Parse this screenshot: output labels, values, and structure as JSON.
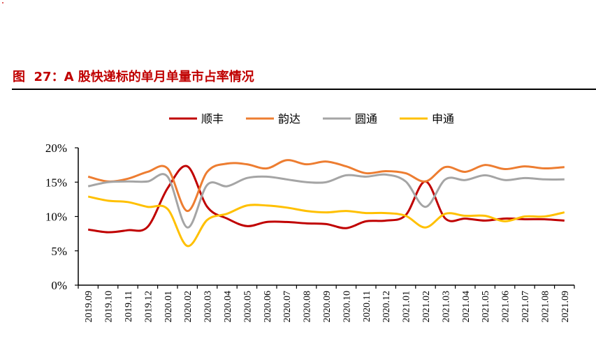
{
  "title": "图  27：A 股快递标的单月单量市占率情况",
  "chart_data": {
    "type": "line",
    "title": "",
    "xlabel": "",
    "ylabel": "",
    "ylim": [
      0,
      20
    ],
    "yticks": [
      "0%",
      "5%",
      "10%",
      "15%",
      "20%"
    ],
    "grid": false,
    "legend": "top",
    "categories": [
      "2019.09",
      "2019.10",
      "2019.11",
      "2019.12",
      "2020.01",
      "2020.02",
      "2020.03",
      "2020.04",
      "2020.05",
      "2020.06",
      "2020.07",
      "2020.08",
      "2020.09",
      "2020.10",
      "2020.11",
      "2020.12",
      "2021.01",
      "2021.02",
      "2021.03",
      "2021.04",
      "2021.05",
      "2021.06",
      "2021.07",
      "2021.08",
      "2021.09"
    ],
    "series": [
      {
        "name": "顺丰",
        "color": "#c00000",
        "values": [
          8.1,
          7.7,
          8.0,
          8.5,
          14.1,
          17.3,
          11.4,
          9.7,
          8.6,
          9.2,
          9.2,
          9.0,
          8.9,
          8.3,
          9.3,
          9.4,
          10.2,
          15.1,
          9.7,
          9.7,
          9.4,
          9.7,
          9.6,
          9.6,
          9.4
        ]
      },
      {
        "name": "韵达",
        "color": "#ed7d31",
        "values": [
          15.8,
          15.1,
          15.5,
          16.5,
          17.0,
          10.8,
          16.5,
          17.7,
          17.6,
          17.0,
          18.2,
          17.6,
          18.0,
          17.3,
          16.3,
          16.6,
          16.3,
          15.1,
          17.2,
          16.5,
          17.5,
          16.9,
          17.3,
          17.0,
          17.2
        ]
      },
      {
        "name": "圆通",
        "color": "#a5a5a5",
        "values": [
          14.4,
          15.0,
          15.1,
          15.1,
          15.8,
          8.4,
          14.6,
          14.4,
          15.6,
          15.8,
          15.4,
          15.0,
          15.0,
          16.0,
          15.8,
          16.1,
          15.1,
          11.4,
          15.4,
          15.3,
          16.0,
          15.3,
          15.6,
          15.4,
          15.4
        ]
      },
      {
        "name": "申通",
        "color": "#ffc000",
        "values": [
          12.9,
          12.3,
          12.1,
          11.4,
          11.1,
          5.7,
          9.5,
          10.4,
          11.6,
          11.6,
          11.3,
          10.8,
          10.6,
          10.8,
          10.5,
          10.5,
          10.1,
          8.4,
          10.4,
          10.1,
          10.1,
          9.3,
          10.0,
          10.0,
          10.6
        ]
      }
    ]
  }
}
